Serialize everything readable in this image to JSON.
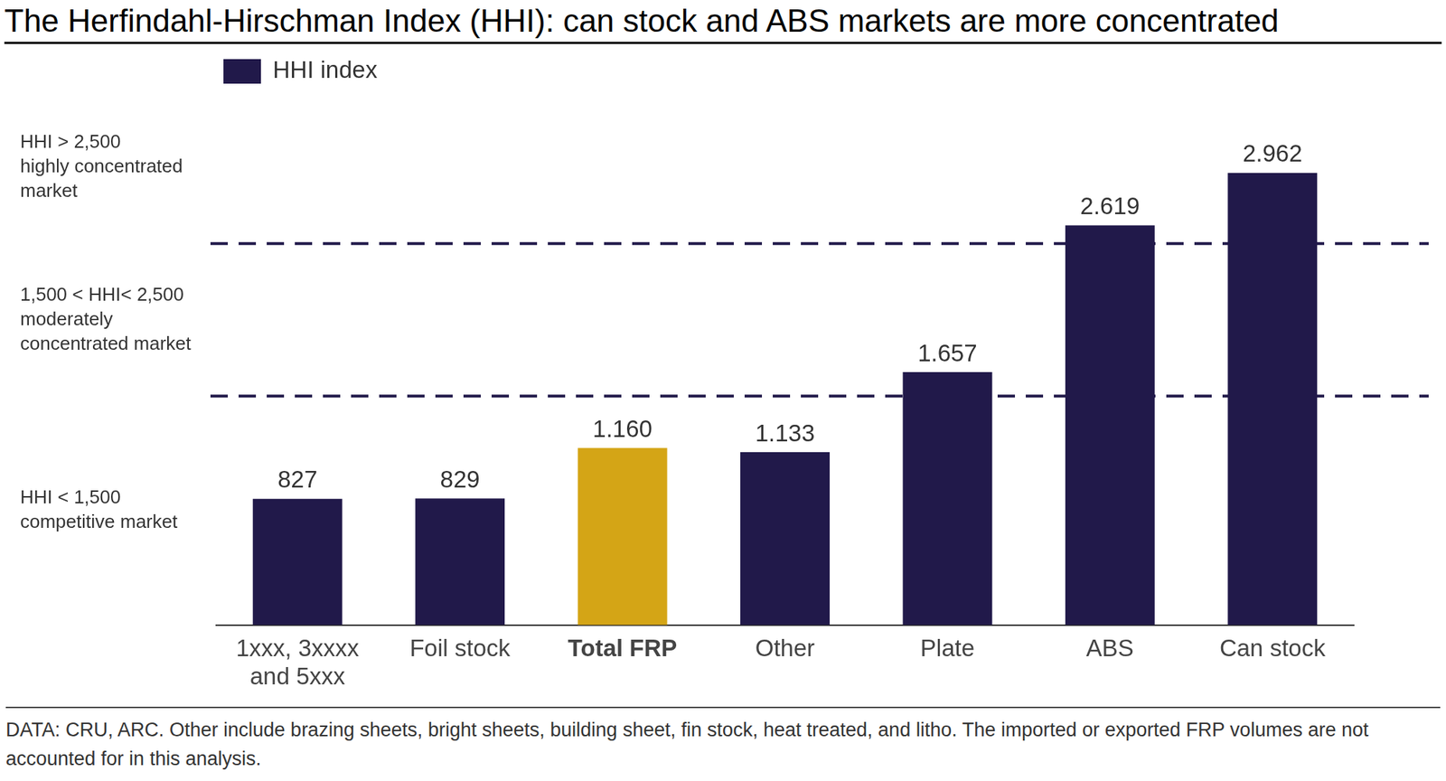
{
  "chart_data": {
    "type": "bar",
    "title": "The Herfindahl-Hirschman Index (HHI): can stock and ABS markets are more concentrated",
    "categories": [
      "1xxx, 3xxxx and 5xxx",
      "Foil stock",
      "Total FRP",
      "Other",
      "Plate",
      "ABS",
      "Can stock"
    ],
    "series": [
      {
        "name": "HHI index",
        "color": "#21194a",
        "colors": [
          "#21194a",
          "#21194a",
          "#d4a516",
          "#21194a",
          "#21194a",
          "#21194a",
          "#21194a"
        ],
        "values": [
          827,
          829,
          1160,
          1133,
          1657,
          2619,
          2962
        ],
        "value_labels": [
          "827",
          "829",
          "1.160",
          "1.133",
          "1.657",
          "2.619",
          "2.962"
        ]
      }
    ],
    "ylim": [
      0,
      3500
    ],
    "grid": false,
    "legend": "top-left",
    "data_labels": true,
    "tick_labels": "x",
    "hlines": [
      {
        "value": 1500,
        "line_style": "dashed"
      },
      {
        "value": 2500,
        "line_style": "dashed"
      }
    ],
    "annotations": [
      {
        "text": [
          "HHI > 2,500",
          "highly concentrated",
          "market"
        ]
      },
      {
        "text": [
          "1,500 < HHI< 2,500",
          "moderately",
          "concentrated market"
        ]
      },
      {
        "text": [
          "HHI < 1,500",
          "competitive market"
        ]
      }
    ],
    "source": "DATA: CRU, ARC. Other include brazing sheets, bright sheets, building sheet, fin stock, heat treated, and litho. The imported or exported FRP volumes are not accounted for in this analysis."
  }
}
